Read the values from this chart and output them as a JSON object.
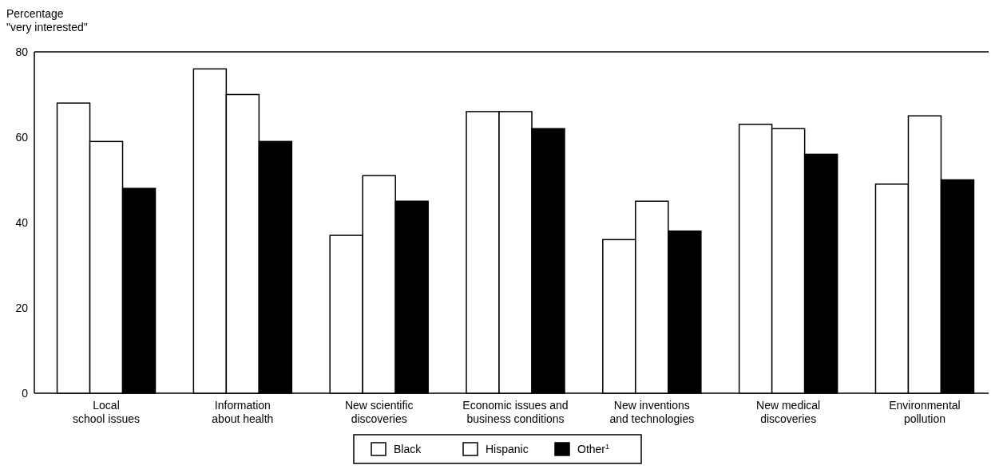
{
  "chart_data": {
    "type": "bar",
    "ylabel": "Percentage\n\"very interested\"",
    "categories": [
      "Local\nschool issues",
      "Information\nabout health",
      "New scientific\ndiscoveries",
      "Economic issues and\nbusiness conditions",
      "New inventions\nand technologies",
      "New medical\ndiscoveries",
      "Environmental\npollution"
    ],
    "series": [
      {
        "name": "Black",
        "color": "#ffffff",
        "values": [
          68,
          76,
          37,
          66,
          36,
          63,
          49
        ]
      },
      {
        "name": "Hispanic",
        "color": "#ffffff",
        "values": [
          59,
          70,
          51,
          66,
          45,
          62,
          65
        ]
      },
      {
        "name": "Other$^{1}$",
        "color": "#000000",
        "values": [
          48,
          59,
          45,
          62,
          38,
          56,
          50
        ]
      }
    ],
    "ylim": [
      0,
      80
    ],
    "yticks": [
      0,
      20,
      40,
      60,
      80
    ],
    "legend": "bottom"
  }
}
